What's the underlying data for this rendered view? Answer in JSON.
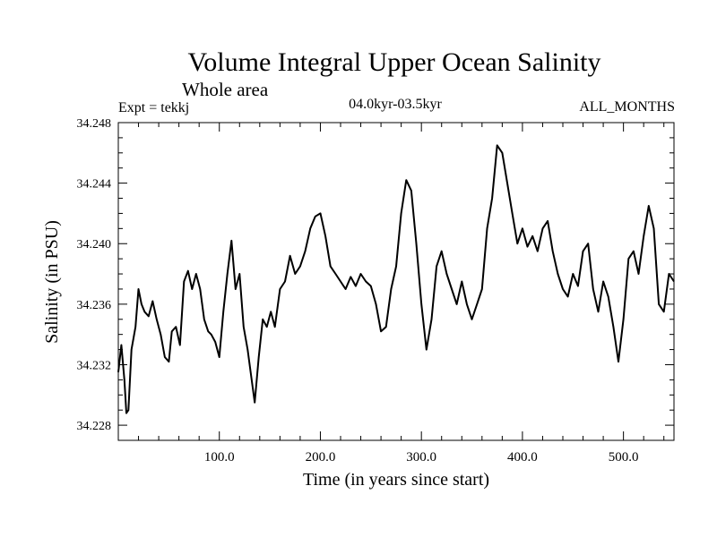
{
  "chart_data": {
    "type": "line",
    "title": "Volume Integral Upper Ocean Salinity",
    "subtitle": "Whole area",
    "experiment": "Expt = tekkj",
    "period": "04.0kyr-03.5kyr",
    "season": "ALL_MONTHS",
    "xlabel": "Time (in years since start)",
    "ylabel": "Salinity (in PSU)",
    "xlim": [
      0,
      550
    ],
    "ylim": [
      34.227,
      34.248
    ],
    "x_ticks": [
      100,
      200,
      300,
      400,
      500
    ],
    "x_tick_labels": [
      "100.0",
      "200.0",
      "300.0",
      "400.0",
      "500.0"
    ],
    "y_ticks": [
      34.228,
      34.232,
      34.236,
      34.24,
      34.244,
      34.248
    ],
    "y_tick_labels": [
      "34.228",
      "34.232",
      "34.236",
      "34.240",
      "34.244",
      "34.248"
    ],
    "grid": false,
    "series": [
      {
        "name": "Salinity",
        "color": "#000000",
        "x": [
          0,
          3,
          6,
          8,
          10,
          13,
          17,
          20,
          23,
          26,
          30,
          34,
          38,
          42,
          46,
          50,
          53,
          57,
          61,
          65,
          69,
          73,
          77,
          81,
          85,
          89,
          92,
          96,
          100,
          104,
          108,
          112,
          116,
          120,
          124,
          128,
          132,
          135,
          139,
          143,
          147,
          151,
          155,
          160,
          165,
          170,
          175,
          180,
          185,
          190,
          195,
          200,
          205,
          210,
          215,
          220,
          225,
          230,
          235,
          240,
          245,
          250,
          255,
          260,
          265,
          270,
          275,
          280,
          285,
          290,
          295,
          300,
          305,
          310,
          315,
          320,
          325,
          330,
          335,
          340,
          345,
          350,
          355,
          360,
          365,
          370,
          375,
          380,
          385,
          390,
          395,
          400,
          405,
          410,
          415,
          420,
          425,
          430,
          435,
          440,
          445,
          450,
          455,
          460,
          465,
          470,
          475,
          480,
          485,
          490,
          495,
          500,
          505,
          510,
          515,
          520,
          525,
          530,
          535,
          540,
          545,
          550
        ],
        "values": [
          34.2315,
          34.2333,
          34.231,
          34.2288,
          34.229,
          34.233,
          34.2345,
          34.237,
          34.236,
          34.2355,
          34.2352,
          34.2362,
          34.235,
          34.234,
          34.2325,
          34.2322,
          34.2342,
          34.2345,
          34.2333,
          34.2375,
          34.2382,
          34.237,
          34.238,
          34.237,
          34.235,
          34.2342,
          34.234,
          34.2335,
          34.2325,
          34.2355,
          34.238,
          34.2402,
          34.237,
          34.238,
          34.2345,
          34.233,
          34.231,
          34.2295,
          34.2325,
          34.235,
          34.2345,
          34.2355,
          34.2345,
          34.237,
          34.2375,
          34.2392,
          34.238,
          34.2385,
          34.2395,
          34.241,
          34.2418,
          34.242,
          34.2405,
          34.2385,
          34.238,
          34.2375,
          34.237,
          34.2378,
          34.2372,
          34.238,
          34.2375,
          34.2372,
          34.236,
          34.2342,
          34.2345,
          34.237,
          34.2385,
          34.242,
          34.2442,
          34.2435,
          34.24,
          34.236,
          34.233,
          34.235,
          34.2385,
          34.2395,
          34.238,
          34.237,
          34.236,
          34.2375,
          34.236,
          34.235,
          34.236,
          34.237,
          34.241,
          34.243,
          34.2465,
          34.246,
          34.244,
          34.242,
          34.24,
          34.241,
          34.2398,
          34.2405,
          34.2395,
          34.241,
          34.2415,
          34.2395,
          34.238,
          34.237,
          34.2365,
          34.238,
          34.2372,
          34.2395,
          34.24,
          34.237,
          34.2355,
          34.2375,
          34.2365,
          34.2345,
          34.2322,
          34.235,
          34.239,
          34.2395,
          34.238,
          34.2405,
          34.2425,
          34.241,
          34.236,
          34.2355,
          34.238,
          34.2375
        ]
      }
    ]
  }
}
